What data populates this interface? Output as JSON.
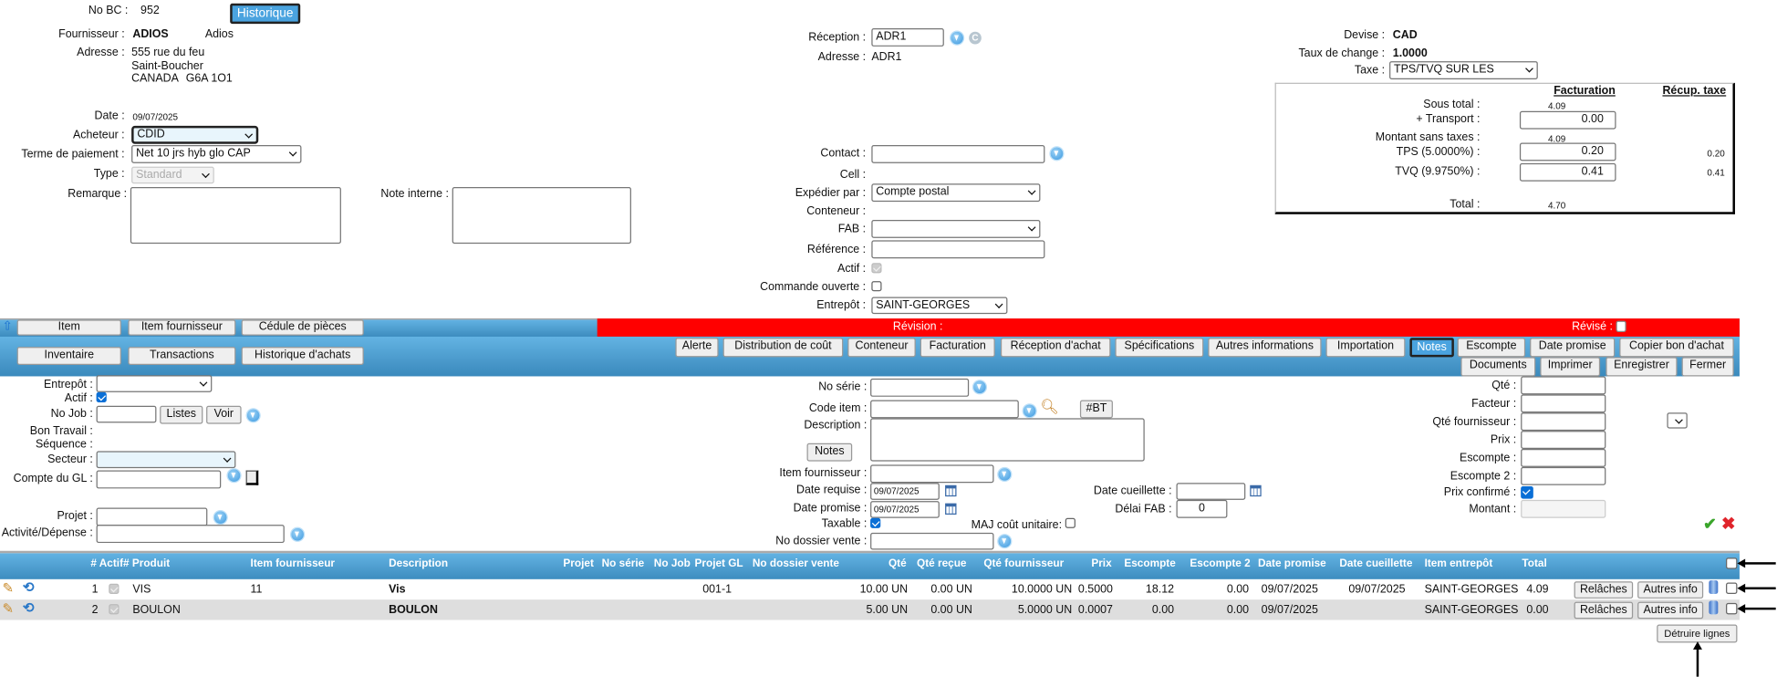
{
  "header": {
    "no_bc_label": "No BC :",
    "no_bc": "952",
    "historique_btn": "Historique",
    "fournisseur_label": "Fournisseur :",
    "fournisseur_code": "ADIOS",
    "fournisseur_name": "Adios",
    "adresse_label": "Adresse :",
    "adresse_line1": "555 rue du feu",
    "adresse_line2": "Saint-Boucher",
    "adresse_country": "CANADA",
    "adresse_postal": "G6A 1O1",
    "date_label": "Date :",
    "date": "09/07/2025",
    "acheteur_label": "Acheteur :",
    "acheteur": "CDID",
    "terme_label": "Terme de paiement :",
    "terme": "Net 10 jrs hyb glo CAP",
    "type_label": "Type :",
    "type": "Standard",
    "remarque_label": "Remarque :",
    "note_interne_label": "Note interne :"
  },
  "reception": {
    "reception_label": "Réception :",
    "reception": "ADR1",
    "adresse_label": "Adresse :",
    "adresse": "ADR1",
    "contact_label": "Contact :",
    "cell_label": "Cell :",
    "expedier_label": "Expédier par :",
    "expedier": "Compte postal",
    "conteneur_label": "Conteneur :",
    "fab_label": "FAB :",
    "reference_label": "Référence :",
    "actif_label": "Actif :",
    "commande_ouverte_label": "Commande ouverte :",
    "entrepot_label": "Entrepôt :",
    "entrepot": "SAINT-GEORGES"
  },
  "currency": {
    "devise_label": "Devise :",
    "devise": "CAD",
    "taux_label": "Taux de change :",
    "taux": "1.0000",
    "taxe_label": "Taxe :",
    "taxe": "TPS/TVQ SUR LES ACHATS"
  },
  "totals": {
    "facturation_header": "Facturation",
    "recup_header": "Récup. taxe",
    "sous_total_label": "Sous total :",
    "sous_total": "4.09",
    "transport_label": "+ Transport :",
    "transport": "0.00",
    "montant_label": "Montant sans taxes :",
    "montant": "4.09",
    "tps_label": "TPS (5.0000%) :",
    "tps": "0.20",
    "tps_recup": "0.20",
    "tvq_label": "TVQ (9.9750%) :",
    "tvq": "0.41",
    "tvq_recup": "0.41",
    "total_label": "Total :",
    "total": "4.70"
  },
  "toolbar": {
    "left_row1": [
      "Item",
      "Item fournisseur",
      "Cédule de pièces"
    ],
    "left_row2": [
      "Inventaire",
      "Transactions",
      "Historique d'achats"
    ],
    "revision_label": "Révision :",
    "revise_label": "Révisé :",
    "right_row1": [
      "Alerte",
      "Distribution de coût",
      "Conteneur",
      "Facturation",
      "Réception d'achat",
      "Spécifications",
      "Autres informations",
      "Importation",
      "Notes",
      "Escompte",
      "Date promise",
      "Copier bon d'achat"
    ],
    "right_row2": [
      "Documents",
      "Imprimer",
      "Enregistrer",
      "Fermer"
    ],
    "active_tab": "Notes",
    "accent_color": "#4aa3df",
    "revision_color": "#ff0000"
  },
  "line_form": {
    "entrepot_label": "Entrepôt :",
    "actif_label": "Actif :",
    "no_job_label": "No Job :",
    "listes_btn": "Listes",
    "voir_btn": "Voir",
    "bon_travail_label": "Bon Travail :",
    "sequence_label": "Séquence :",
    "secteur_label": "Secteur :",
    "compte_gl_label": "Compte du GL :",
    "projet_label": "Projet :",
    "activite_label": "Activité/Dépense :",
    "no_serie_label": "No série :",
    "code_item_label": "Code item :",
    "bt_btn": "#BT",
    "description_label": "Description :",
    "notes_btn": "Notes",
    "item_fournisseur_label": "Item fournisseur :",
    "date_requise_label": "Date requise :",
    "date_requise": "09/07/2025",
    "date_promise_label": "Date promise :",
    "date_promise": "09/07/2025",
    "taxable_label": "Taxable :",
    "maj_cout_label": "MAJ coût unitaire:",
    "no_dossier_label": "No dossier vente :",
    "date_cueillette_label": "Date cueillette :",
    "delai_fab_label": "Délai FAB :",
    "delai_fab": "0",
    "qte_label": "Qté :",
    "facteur_label": "Facteur :",
    "qte_fournisseur_label": "Qté fournisseur :",
    "prix_label": "Prix :",
    "escompte_label": "Escompte :",
    "escompte2_label": "Escompte 2 :",
    "prix_confirme_label": "Prix confirmé :",
    "montant_label": "Montant :"
  },
  "table": {
    "headers": [
      "# Actif# Produit",
      "Item fournisseur",
      "Description",
      "Projet",
      "No série",
      "No Job",
      "Projet GL",
      "No dossier vente",
      "Qté",
      "Qté reçue",
      "Qté fournisseur",
      "Prix",
      "Escompte",
      "Escompte 2",
      "Date promise",
      "Date cueillette",
      "Item entrepôt",
      "Total"
    ],
    "rows": [
      {
        "num": "1",
        "produit": "VIS",
        "item_fournisseur": "11",
        "description": "Vis",
        "projet_gl": "001-1",
        "qte": "10.00 UN",
        "qte_recue": "0.00 UN",
        "qte_fournisseur": "10.0000 UN",
        "prix": "0.5000",
        "escompte": "18.12",
        "escompte2": "0.00",
        "date_promise": "09/07/2025",
        "date_cueillette": "09/07/2025",
        "item_entrepot": "SAINT-GEORGES",
        "total": "4.09",
        "relaches": "Relâches",
        "autres_info": "Autres info"
      },
      {
        "num": "2",
        "produit": "BOULON",
        "item_fournisseur": "",
        "description": "BOULON",
        "projet_gl": "",
        "qte": "5.00 UN",
        "qte_recue": "0.00 UN",
        "qte_fournisseur": "5.0000 UN",
        "prix": "0.0007",
        "escompte": "0.00",
        "escompte2": "0.00",
        "date_promise": "09/07/2025",
        "date_cueillette": "",
        "item_entrepot": "SAINT-GEORGES",
        "total": "0.00",
        "relaches": "Relâches",
        "autres_info": "Autres info"
      }
    ],
    "detruire_btn": "Détruire lignes"
  }
}
